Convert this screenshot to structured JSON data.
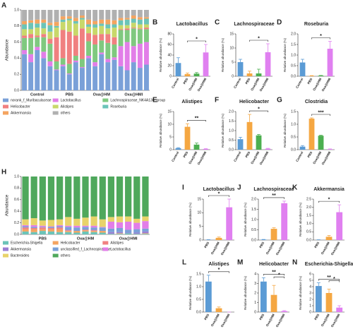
{
  "chart_data": [
    {
      "panel": "A",
      "type": "stacked_bar",
      "ylabel": "Abundance",
      "categories": [
        null,
        null,
        "Control",
        null,
        null,
        null,
        null,
        "PBS",
        null,
        null,
        null,
        null,
        "Oxa@HM",
        null,
        null,
        null,
        null,
        "Oxa@HMI",
        null,
        null
      ],
      "ylim": [
        0,
        1
      ],
      "yticks": [
        {
          "value": 0,
          "label": "0.0"
        },
        0.2,
        0.4,
        0.6,
        0.8,
        {
          "value": 1,
          "label": "1.0"
        }
      ],
      "series": [
        {
          "name": "norank_f_Muribaculaceae",
          "color": "#7aa0d8",
          "values": [
            0.45,
            0.35,
            0.5,
            0.4,
            0.3,
            0.25,
            0.3,
            0.2,
            0.35,
            0.28,
            0.4,
            0.3,
            0.45,
            0.35,
            0.38,
            0.3,
            0.25,
            0.35,
            0.28,
            0.32
          ]
        },
        {
          "name": "Lactobacillus",
          "color": "#e27ee8",
          "values": [
            0.05,
            0.1,
            0.04,
            0.08,
            0.06,
            0.01,
            0.02,
            0.01,
            0.02,
            0.01,
            0.03,
            0.05,
            0.02,
            0.04,
            0.03,
            0.25,
            0.35,
            0.2,
            0.3,
            0.28
          ]
        },
        {
          "name": "Lachnospiraceae_NK4A136_group",
          "color": "#7fc97f",
          "values": [
            0.15,
            0.2,
            0.12,
            0.18,
            0.22,
            0.1,
            0.08,
            0.12,
            0.06,
            0.1,
            0.18,
            0.22,
            0.15,
            0.2,
            0.16,
            0.2,
            0.15,
            0.22,
            0.18,
            0.16
          ]
        },
        {
          "name": "Helicobacter",
          "color": "#f08080",
          "values": [
            0.03,
            0.05,
            0.02,
            0.04,
            0.06,
            0.3,
            0.35,
            0.4,
            0.25,
            0.38,
            0.1,
            0.12,
            0.08,
            0.11,
            0.09,
            0.01,
            0.02,
            0.01,
            0.01,
            0.02
          ]
        },
        {
          "name": "Alistipes",
          "color": "#c8d86a",
          "values": [
            0.08,
            0.06,
            0.1,
            0.07,
            0.09,
            0.12,
            0.1,
            0.14,
            0.15,
            0.11,
            0.08,
            0.09,
            0.1,
            0.07,
            0.12,
            0.05,
            0.04,
            0.06,
            0.05,
            0.04
          ]
        },
        {
          "name": "Roseburia",
          "color": "#6bc4b8",
          "values": [
            0.06,
            0.08,
            0.05,
            0.07,
            0.08,
            0.02,
            0.03,
            0.02,
            0.03,
            0.02,
            0.03,
            0.04,
            0.03,
            0.05,
            0.04,
            0.06,
            0.07,
            0.05,
            0.06,
            0.07
          ]
        },
        {
          "name": "Akkermansia",
          "color": "#f4a460",
          "values": [
            0.04,
            0.03,
            0.05,
            0.04,
            0.03,
            0.05,
            0.04,
            0.03,
            0.04,
            0.03,
            0.06,
            0.04,
            0.05,
            0.06,
            0.05,
            0.03,
            0.02,
            0.04,
            0.03,
            0.02
          ]
        },
        {
          "name": "others",
          "color": "#b0b0b0",
          "values": [
            0.14,
            0.13,
            0.12,
            0.12,
            0.16,
            0.15,
            0.08,
            0.08,
            0.1,
            0.07,
            0.12,
            0.14,
            0.12,
            0.12,
            0.13,
            0.1,
            0.1,
            0.07,
            0.09,
            0.09
          ]
        }
      ]
    },
    {
      "panel": "B",
      "type": "bar",
      "title": "Lactobacillus",
      "ylabel": "Relative abundance (%)",
      "categories": [
        "Control",
        "PBS",
        "Oxa@HM",
        "Oxa@HMI"
      ],
      "colors": [
        "#5b9bd5",
        "#f5a742",
        "#4caf50",
        "#e080f0"
      ],
      "values": [
        25,
        4,
        5,
        45
      ],
      "errors": [
        10,
        2,
        2,
        15
      ],
      "ylim": [
        0,
        80
      ],
      "yticks": [
        0,
        20,
        40,
        60,
        80
      ],
      "significance": [
        {
          "label": "*",
          "groups": [
            "PBS",
            "Oxa@HMI"
          ]
        }
      ]
    },
    {
      "panel": "C",
      "type": "bar",
      "title": "Lachnospiraceae",
      "ylabel": "Relative abundance (%)",
      "categories": [
        "Control",
        "PBS",
        "Oxa@HM",
        "Oxa@HMI"
      ],
      "colors": [
        "#5b9bd5",
        "#f5a742",
        "#4caf50",
        "#e080f0"
      ],
      "values": [
        5,
        1,
        1,
        8.5
      ],
      "errors": [
        1,
        0.8,
        1.5,
        3
      ],
      "ylim": [
        0,
        15
      ],
      "yticks": [
        0,
        5,
        10,
        15
      ],
      "significance": [
        {
          "label": "*",
          "groups": [
            "PBS",
            "Oxa@HMI"
          ]
        }
      ]
    },
    {
      "panel": "D",
      "type": "bar",
      "title": "Roseburia",
      "ylabel": "Relative abundance (%)",
      "categories": [
        "Control",
        "PBS",
        "Oxa@HM",
        "Oxa@HMI"
      ],
      "colors": [
        "#5b9bd5",
        "#f5a742",
        "#4caf50",
        "#e080f0"
      ],
      "values": [
        0.65,
        0.02,
        0.03,
        1.3
      ],
      "errors": [
        0.15,
        0.01,
        0.01,
        0.35
      ],
      "ylim": [
        0,
        2
      ],
      "yticks": [
        {
          "value": 0,
          "label": "0.0"
        },
        0.5,
        {
          "value": 1,
          "label": "1.0"
        },
        1.5,
        {
          "value": 2,
          "label": "2.0"
        }
      ],
      "significance": [
        {
          "label": "*",
          "groups": [
            "PBS",
            "Oxa@HMI"
          ]
        }
      ]
    },
    {
      "panel": "E",
      "type": "bar",
      "title": "Alistipes",
      "ylabel": "Relative abundance (%)",
      "categories": [
        "Control",
        "PBS",
        "Oxa@HM",
        "Oxa@HMI"
      ],
      "colors": [
        "#5b9bd5",
        "#f5a742",
        "#4caf50",
        "#e080f0"
      ],
      "values": [
        0.6,
        9,
        2,
        0.3
      ],
      "errors": [
        0.2,
        1.2,
        0.6,
        0.1
      ],
      "ylim": [
        0,
        15
      ],
      "yticks": [
        0,
        5,
        10,
        15
      ],
      "significance": [
        {
          "label": "**",
          "groups": [
            "PBS",
            "Oxa@HMI"
          ]
        }
      ]
    },
    {
      "panel": "F",
      "type": "bar",
      "title": "Helicobacter",
      "ylabel": "Relative abundance (%)",
      "categories": [
        "Control",
        "PBS",
        "Oxa@HM",
        "Oxa@HMI"
      ],
      "colors": [
        "#5b9bd5",
        "#f5a742",
        "#4caf50",
        "#e080f0"
      ],
      "values": [
        0.55,
        1.45,
        0.75,
        0.05
      ],
      "errors": [
        0.1,
        0.4,
        0.05,
        0.02
      ],
      "ylim": [
        0,
        2
      ],
      "yticks": [
        {
          "value": 0,
          "label": "0.0"
        },
        0.5,
        {
          "value": 1,
          "label": "1.0"
        },
        1.5,
        {
          "value": 2,
          "label": "2.0"
        }
      ],
      "significance": [
        {
          "label": "*",
          "groups": [
            "PBS",
            "Oxa@HMI"
          ]
        }
      ]
    },
    {
      "panel": "G",
      "type": "bar",
      "title": "Clostridia",
      "ylabel": "Relative abundance (%)",
      "categories": [
        "Control",
        "PBS",
        "Oxa@HM",
        "Oxa@HMI"
      ],
      "colors": [
        "#5b9bd5",
        "#f5a742",
        "#4caf50",
        "#e080f0"
      ],
      "values": [
        0.12,
        1.22,
        0.55,
        0.02
      ],
      "errors": [
        0.04,
        0.03,
        0.02,
        0.01
      ],
      "ylim": [
        0,
        1.5
      ],
      "yticks": [
        {
          "value": 0,
          "label": "0.0"
        },
        0.5,
        {
          "value": 1,
          "label": "1.0"
        },
        1.5
      ],
      "significance": [
        {
          "label": "***",
          "groups": [
            "PBS",
            "Oxa@HMI"
          ]
        }
      ]
    },
    {
      "panel": "H",
      "type": "stacked_bar",
      "ylabel": "Abundance",
      "categories": [
        null,
        null,
        "PBS",
        null,
        null,
        null,
        null,
        "Oxa@HM",
        null,
        null,
        null,
        null,
        "Oxa@HMI",
        null,
        null
      ],
      "ylim": [
        0,
        1
      ],
      "yticks": [
        {
          "value": 0,
          "label": "0.0"
        },
        0.2,
        0.4,
        0.6,
        0.8,
        {
          "value": 1,
          "label": "1.0"
        }
      ],
      "series": [
        {
          "name": "Escherichia-Shigella",
          "color": "#6bc4b8",
          "values": [
            0.05,
            0.04,
            0.06,
            0.05,
            0.04,
            0.04,
            0.03,
            0.05,
            0.04,
            0.03,
            0.01,
            0.01,
            0.02,
            0.01,
            0.01
          ]
        },
        {
          "name": "Helicobacter",
          "color": "#f4a460",
          "values": [
            0.04,
            0.05,
            0.03,
            0.04,
            0.05,
            0.02,
            0.03,
            0.02,
            0.02,
            0.03,
            0,
            0.01,
            0,
            0,
            0.01
          ]
        },
        {
          "name": "Alistipes",
          "color": "#f08080",
          "values": [
            0.03,
            0.02,
            0.03,
            0.02,
            0.03,
            0.01,
            0,
            0.01,
            0.01,
            0,
            0,
            0,
            0,
            0,
            0
          ]
        },
        {
          "name": "Akkermansia",
          "color": "#9b7fd4",
          "values": [
            0,
            0,
            0,
            0,
            0,
            0.01,
            0,
            0,
            0.01,
            0,
            0.03,
            0.02,
            0.01,
            0.02,
            0.03
          ]
        },
        {
          "name": "unclassified_f_Lachnospiraceae",
          "color": "#7aa0d8",
          "values": [
            0.02,
            0.02,
            0.01,
            0.02,
            0.02,
            0.05,
            0.06,
            0.05,
            0.04,
            0.06,
            0.06,
            0.07,
            0.05,
            0.06,
            0.05
          ]
        },
        {
          "name": "Lactobacillus",
          "color": "#e27ee8",
          "values": [
            0.02,
            0.03,
            0.02,
            0.01,
            0.02,
            0.02,
            0.03,
            0.02,
            0.03,
            0.01,
            0.12,
            0.1,
            0.14,
            0.11,
            0.13
          ]
        },
        {
          "name": "Bacteroides",
          "color": "#e8d36a",
          "values": [
            0.1,
            0.12,
            0.09,
            0.11,
            0.1,
            0.15,
            0.12,
            0.14,
            0.16,
            0.13,
            0.08,
            0.1,
            0.09,
            0.07,
            0.08
          ]
        },
        {
          "name": "others",
          "color": "#4fa85c",
          "values": [
            0.74,
            0.72,
            0.76,
            0.75,
            0.74,
            0.7,
            0.73,
            0.71,
            0.69,
            0.74,
            0.7,
            0.69,
            0.69,
            0.73,
            0.69
          ]
        }
      ]
    },
    {
      "panel": "I",
      "type": "bar",
      "title": "Lactobacillus",
      "ylabel": "Relative abundance (%)",
      "categories": [
        "PBS",
        "Oxa@HM",
        "Oxa@HMI"
      ],
      "colors": [
        "#5b9bd5",
        "#f5a742",
        "#e080f0"
      ],
      "values": [
        0.1,
        0.8,
        12
      ],
      "errors": [
        0.05,
        0.3,
        3
      ],
      "ylim": [
        0,
        15
      ],
      "yticks": [
        0,
        5,
        10,
        15
      ],
      "significance": [
        {
          "label": "*",
          "groups": [
            "PBS",
            "Oxa@HMI"
          ]
        }
      ]
    },
    {
      "panel": "J",
      "type": "bar",
      "title": "Lachnospiraceae",
      "ylabel": "Relative abundance (%)",
      "categories": [
        "PBS",
        "Oxa@HM",
        "Oxa@HMI"
      ],
      "colors": [
        "#5b9bd5",
        "#f5a742",
        "#e080f0"
      ],
      "values": [
        0.02,
        0.55,
        1.8
      ],
      "errors": [
        0.01,
        0.05,
        0.1
      ],
      "ylim": [
        0,
        2
      ],
      "yticks": [
        {
          "value": 0,
          "label": "0.0"
        },
        0.5,
        {
          "value": 1,
          "label": "1.0"
        },
        1.5,
        {
          "value": 2,
          "label": "2.0"
        }
      ],
      "significance": [
        {
          "label": "**",
          "groups": [
            "PBS",
            "Oxa@HMI"
          ]
        }
      ]
    },
    {
      "panel": "K",
      "type": "bar",
      "title": "Akkermansia",
      "ylabel": "Relative abundance (%)",
      "categories": [
        "PBS",
        "Oxa@HM",
        "Oxa@HMI"
      ],
      "colors": [
        "#5b9bd5",
        "#f5a742",
        "#e080f0"
      ],
      "values": [
        0.01,
        0.2,
        1.7
      ],
      "errors": [
        0.01,
        0.08,
        0.45
      ],
      "ylim": [
        0,
        2.5
      ],
      "yticks": [
        {
          "value": 0,
          "label": "0.0"
        },
        0.5,
        {
          "value": 1,
          "label": "1.0"
        },
        1.5,
        {
          "value": 2,
          "label": "2.0"
        },
        2.5
      ],
      "significance": [
        {
          "label": "*",
          "groups": [
            "PBS",
            "Oxa@HMI"
          ]
        }
      ]
    },
    {
      "panel": "L",
      "type": "bar",
      "title": "Alistipes",
      "ylabel": "Relative abundance (%)",
      "categories": [
        "PBS",
        "Oxa@HM",
        "Oxa@HMI"
      ],
      "colors": [
        "#5b9bd5",
        "#f5a742",
        "#e080f0"
      ],
      "values": [
        1.2,
        0.15,
        0
      ],
      "errors": [
        0.25,
        0.05,
        0
      ],
      "ylim": [
        0,
        1.5
      ],
      "yticks": [
        {
          "value": 0,
          "label": "0.0"
        },
        0.5,
        {
          "value": 1,
          "label": "1.0"
        },
        1.5
      ],
      "significance": [
        {
          "label": "*",
          "groups": [
            "PBS",
            "Oxa@HMI"
          ]
        }
      ]
    },
    {
      "panel": "M",
      "type": "bar",
      "title": "Helicobacter",
      "ylabel": "Relative abundance (%)",
      "categories": [
        "PBS",
        "Oxa@HM",
        "Oxa@HMI"
      ],
      "colors": [
        "#5b9bd5",
        "#f5a742",
        "#e080f0"
      ],
      "values": [
        3.2,
        1.8,
        0.1
      ],
      "errors": [
        0.4,
        1,
        0.05
      ],
      "ylim": [
        0,
        4
      ],
      "yticks": [
        0,
        1,
        2,
        3,
        4
      ],
      "significance": [
        {
          "label": "**",
          "groups": [
            "PBS",
            "Oxa@HMI"
          ]
        },
        {
          "label": "*",
          "groups": [
            "Oxa@HM",
            "Oxa@HMI"
          ]
        }
      ]
    },
    {
      "panel": "N",
      "type": "bar",
      "title": "Escherichia-Shigella",
      "ylabel": "Relative abundance (%)",
      "categories": [
        "PBS",
        "Oxa@HM",
        "Oxa@HMI"
      ],
      "colors": [
        "#5b9bd5",
        "#f5a742",
        "#e080f0"
      ],
      "values": [
        4.1,
        3,
        0.7
      ],
      "errors": [
        0.5,
        0.6,
        0.3
      ],
      "ylim": [
        0,
        6
      ],
      "yticks": [
        0,
        1,
        2,
        3,
        4,
        5,
        6
      ],
      "significance": [
        {
          "label": "**",
          "groups": [
            "PBS",
            "Oxa@HMI"
          ]
        },
        {
          "label": "*",
          "groups": [
            "Oxa@HM",
            "Oxa@HMI"
          ]
        }
      ]
    }
  ]
}
